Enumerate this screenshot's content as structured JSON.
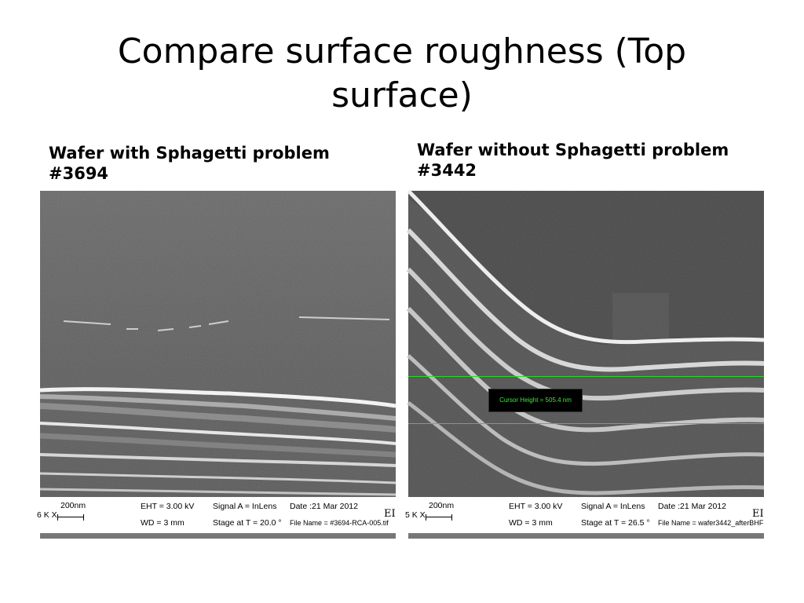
{
  "slide": {
    "title": "Compare surface roughness (Top surface)"
  },
  "left_panel": {
    "caption": "Wafer with Sphagetti problem #3694",
    "databar": {
      "scale": "200nm",
      "mag": "6 K X",
      "eht": "EHT =  3.00 kV",
      "wd": "WD =    3 mm",
      "signal": "Signal A = InLens",
      "stage": "Stage at T =  20.0 °",
      "date": "Date :21 Mar 2012",
      "file": "File Name = #3694-RCA-005.tif",
      "logo": "EI"
    }
  },
  "right_panel": {
    "caption": "Wafer without Sphagetti problem #3442",
    "cursor_readout": "Cursor Height = 505.4 nm",
    "databar": {
      "scale": "200nm",
      "mag": "5 K X",
      "eht": "EHT =  3.00 kV",
      "wd": "WD =    3 mm",
      "signal": "Signal A = InLens",
      "stage": "Stage at T =  26.5 °",
      "date": "Date :21 Mar 2012",
      "file": "File Name = wafer3442_afterBHF",
      "logo": "EI"
    }
  }
}
